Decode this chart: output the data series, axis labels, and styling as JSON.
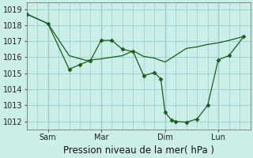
{
  "title": "Pression niveau de la mer( hPa )",
  "bg_color": "#cceee8",
  "grid_color": "#99cccc",
  "line_color": "#1a5c1a",
  "ylim": [
    1011.5,
    1019.4
  ],
  "yticks": [
    1012,
    1013,
    1014,
    1015,
    1016,
    1017,
    1018,
    1019
  ],
  "xlim": [
    0,
    10.5
  ],
  "xtick_labels": [
    "Sam",
    "Mar",
    "Dim",
    "Lun"
  ],
  "xtick_positions": [
    1.0,
    3.5,
    6.5,
    9.0
  ],
  "vline_positions": [
    1.0,
    3.5,
    6.5,
    9.0
  ],
  "series1_x": [
    0.0,
    1.0,
    2.0,
    2.8,
    3.5,
    4.5,
    5.0,
    5.5,
    6.0,
    6.5,
    7.5,
    8.0,
    8.5,
    9.0,
    9.5,
    10.2
  ],
  "series1_y": [
    1018.7,
    1018.1,
    1016.1,
    1015.8,
    1015.9,
    1016.1,
    1016.4,
    1016.05,
    1015.95,
    1015.7,
    1016.55,
    1016.65,
    1016.8,
    1016.9,
    1017.05,
    1017.3
  ],
  "series2_x": [
    0.0,
    1.0,
    2.0,
    2.5,
    3.0,
    3.5,
    4.0,
    4.5,
    5.0,
    5.5,
    6.0,
    6.3,
    6.5,
    6.8,
    7.0,
    7.5,
    8.0,
    8.5,
    9.0,
    9.5,
    10.2
  ],
  "series2_y": [
    1018.7,
    1018.1,
    1015.25,
    1015.55,
    1015.8,
    1017.05,
    1017.05,
    1016.5,
    1016.35,
    1014.85,
    1015.05,
    1014.65,
    1012.55,
    1012.1,
    1012.0,
    1011.95,
    1012.15,
    1013.0,
    1015.85,
    1016.1,
    1017.3
  ],
  "font_size_label": 8.5,
  "font_size_tick": 7.0
}
